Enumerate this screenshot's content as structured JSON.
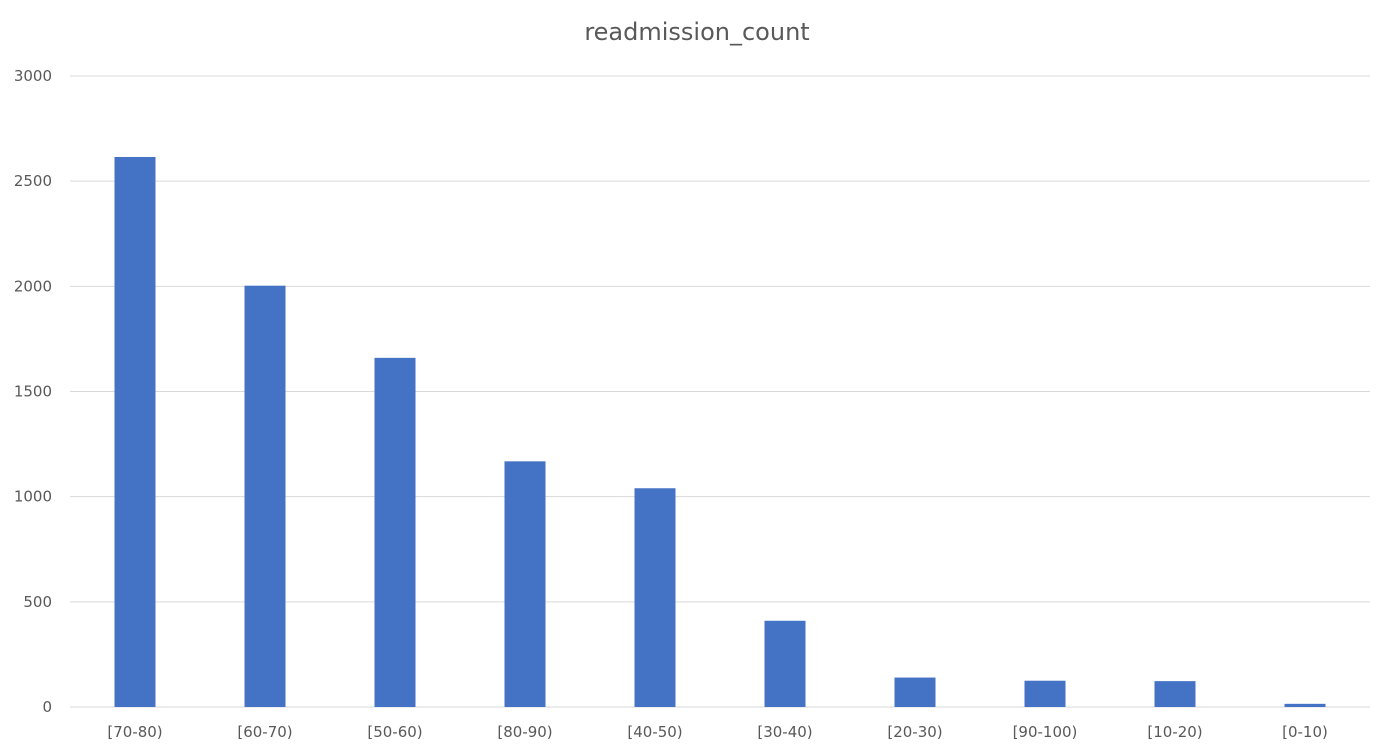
{
  "chart_data": {
    "type": "bar",
    "title": "readmission_count",
    "xlabel": "",
    "ylabel": "",
    "categories": [
      "[70-80)",
      "[60-70)",
      "[50-60)",
      "[80-90)",
      "[40-50)",
      "[30-40)",
      "[20-30)",
      "[90-100)",
      "[10-20)",
      "[0-10)"
    ],
    "values": [
      2615,
      2003,
      1660,
      1168,
      1040,
      410,
      140,
      125,
      123,
      15
    ],
    "ylim": [
      0,
      3000
    ],
    "yticks": [
      "0",
      "500",
      "1000",
      "1500",
      "2000",
      "2500",
      "3000"
    ],
    "grid": true,
    "legend": "none",
    "colors": {
      "bar": "#4472C4",
      "grid": "#D9D9D9",
      "text": "#595959"
    }
  }
}
